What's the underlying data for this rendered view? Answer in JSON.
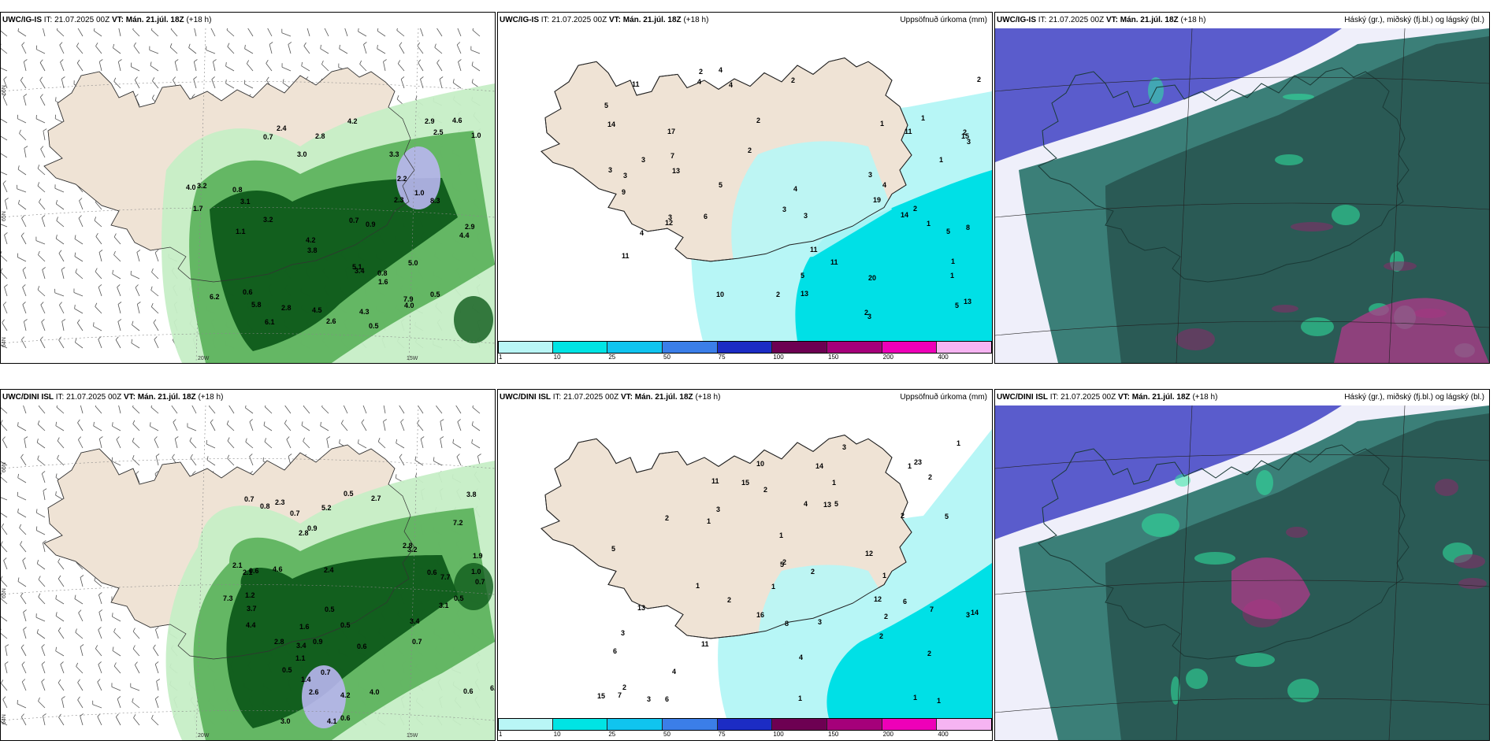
{
  "panels": [
    {
      "model": "UWC/IG-IS",
      "it_label": "IT:",
      "it_value": "21.07.2025 00Z",
      "vt_label": "VT:",
      "vt_value": "Mán. 21.júl. 18Z",
      "lead": "(+18 h)",
      "right_title": "",
      "kind": "precip_wind",
      "lat_labels": [
        "66N",
        "65N",
        "64N"
      ],
      "lon_labels": [
        "20W",
        "15W"
      ],
      "labels": [
        "0.5",
        "0.7",
        "0.6",
        "0.8",
        "1.0",
        "4.3",
        "4.4",
        "3.2",
        "3.8",
        "5.8",
        "6.2",
        "4.0",
        "4.2",
        "5.1",
        "2.3",
        "2.9",
        "1.7",
        "2.5",
        "5.0",
        "8.3",
        "7.9",
        "3.4",
        "6.1",
        "4.0",
        "0.9",
        "2.2",
        "1.1",
        "3.1",
        "2.6",
        "3.0",
        "1.6",
        "4.6",
        "3.3",
        "2.8",
        "2.4",
        "4.5",
        "4.2",
        "3.2",
        "2.9",
        "0.8",
        "2.8",
        "0.7",
        "1.0",
        "0.5"
      ]
    },
    {
      "model": "UWC/IG-IS",
      "it_label": "IT:",
      "it_value": "21.07.2025 00Z",
      "vt_label": "VT:",
      "vt_value": "Mán. 21.júl. 18Z",
      "lead": "(+18 h)",
      "right_title": "Uppsöfnuð úrkoma (mm)",
      "kind": "accum",
      "labels": [
        "1",
        "1",
        "1",
        "1",
        "2",
        "2",
        "3",
        "3",
        "3",
        "2",
        "2",
        "3",
        "4",
        "3",
        "5",
        "3",
        "4",
        "4",
        "5",
        "3",
        "3",
        "4",
        "5",
        "6",
        "7",
        "8",
        "9",
        "10",
        "11",
        "12",
        "13",
        "14",
        "15",
        "17",
        "19",
        "20",
        "11",
        "13",
        "14",
        "11",
        "11",
        "13",
        "11",
        "2",
        "4",
        "2",
        "2",
        "5",
        "4",
        "5",
        "3",
        "1",
        "2",
        "1",
        "2"
      ]
    },
    {
      "model": "UWC/IG-IS",
      "it_label": "IT:",
      "it_value": "21.07.2025 00Z",
      "vt_label": "VT:",
      "vt_value": "Mán. 21.júl. 18Z",
      "lead": "(+18 h)",
      "right_title": "Háský (gr.), miðský (fj.bl.) og lágský (bl.)",
      "kind": "cloud"
    },
    {
      "model": "UWC/DINI ISL",
      "it_label": "IT:",
      "it_value": "21.07.2025 00Z",
      "vt_label": "VT:",
      "vt_value": "Mán. 21.júl. 18Z",
      "lead": "(+18 h)",
      "right_title": "",
      "kind": "precip_wind",
      "lat_labels": [
        "66N",
        "65N",
        "64N"
      ],
      "lon_labels": [
        "20W",
        "15W"
      ],
      "labels": [
        "0.9",
        "0.7",
        "2.8",
        "0.5",
        "0.6",
        "1.9",
        "1.4",
        "0.7",
        "2.8",
        "4.2",
        "0.5",
        "0.6",
        "0.7",
        "0.6",
        "0.5",
        "0.7",
        "1.1",
        "0.7",
        "0.5",
        "0.6",
        "4.1",
        "3.1",
        "2.8",
        "3.4",
        "3.6",
        "4.4",
        "7.3",
        "5.2",
        "6.7",
        "3.8",
        "2.6",
        "2.1",
        "0.5",
        "0.8",
        "1.0",
        "1.2",
        "2.3",
        "3.2",
        "3.0",
        "7.2",
        "7.7",
        "3.7",
        "3.4",
        "2.7",
        "2.1",
        "1.5",
        "1.6",
        "4.0",
        "4.6",
        "2.4",
        "0.6",
        "0.9"
      ]
    },
    {
      "model": "UWC/DINI ISL",
      "it_label": "IT:",
      "it_value": "21.07.2025 00Z",
      "vt_label": "VT:",
      "vt_value": "Mán. 21.júl. 18Z",
      "lead": "(+18 h)",
      "right_title": "Uppsöfnuð úrkoma (mm)",
      "kind": "accum",
      "labels": [
        "1",
        "1",
        "2",
        "1",
        "1",
        "1",
        "2",
        "2",
        "1",
        "1",
        "2",
        "2",
        "1",
        "1",
        "2",
        "2",
        "3",
        "4",
        "3",
        "5",
        "4",
        "5",
        "5",
        "6",
        "6",
        "7",
        "8",
        "3",
        "1",
        "2",
        "4",
        "3",
        "10",
        "11",
        "12",
        "12",
        "13",
        "13",
        "14",
        "15",
        "15",
        "14",
        "16",
        "11",
        "23",
        "2",
        "1",
        "2",
        "3",
        "2",
        "3",
        "5",
        "6",
        "7"
      ]
    },
    {
      "model": "UWC/DINI ISL",
      "it_label": "IT:",
      "it_value": "21.07.2025 00Z",
      "vt_label": "VT:",
      "vt_value": "Mán. 21.júl. 18Z",
      "lead": "(+18 h)",
      "right_title": "Háský (gr.), miðský (fj.bl.) og lágský (bl.)",
      "kind": "cloud"
    }
  ],
  "colorbar": {
    "ticks": [
      "1",
      "10",
      "25",
      "50",
      "75",
      "100",
      "150",
      "200",
      "400"
    ],
    "colors": [
      "#b9f6f6",
      "#00e4e4",
      "#10c4ef",
      "#3b7ee8",
      "#1c2cc4",
      "#6d0052",
      "#a5007a",
      "#ee00b8",
      "#f6b4f2"
    ]
  },
  "colors": {
    "land": "#efe3d5",
    "accum_light": "#b7f6f6",
    "accum_mid": "#00e0e6",
    "precip_light": "#c6eec6",
    "precip_mid": "#5fb35f",
    "precip_dark": "#0e5a1a",
    "precip_heavy": "#b9b6f0",
    "cloud_low": "#5a5ccc",
    "cloud_mid": "#3b7f78",
    "cloud_high": "#2a5a55"
  }
}
